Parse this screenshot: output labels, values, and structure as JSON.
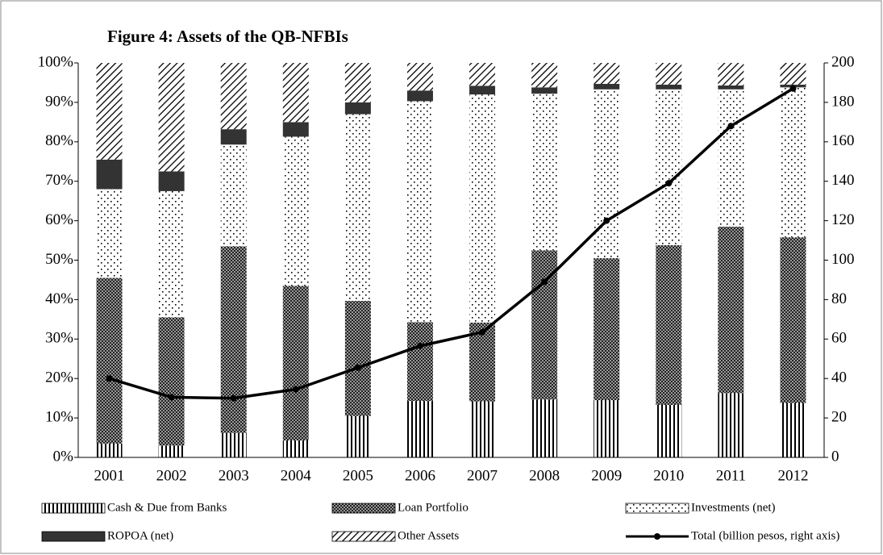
{
  "chart_data": {
    "type": "stacked-bar-line",
    "title": "Figure 4: Assets of the QB-NFBIs",
    "categories": [
      "2001",
      "2002",
      "2003",
      "2004",
      "2005",
      "2006",
      "2007",
      "2008",
      "2009",
      "2010",
      "2011",
      "2012"
    ],
    "series": [
      {
        "name": "Cash & Due from Banks",
        "pattern": "vertical-lines",
        "color": "#000000",
        "values": [
          3.5,
          3,
          6.2,
          4.3,
          10.5,
          14.3,
          14.2,
          14.7,
          14.5,
          13.3,
          16.3,
          13.8
        ]
      },
      {
        "name": "Loan Portfolio",
        "pattern": "crosshatch",
        "color": "#555555",
        "values": [
          42,
          32.5,
          47.3,
          39.2,
          29.2,
          20,
          20,
          37.8,
          36,
          40.5,
          42.2,
          42
        ]
      },
      {
        "name": "Investments (net)",
        "pattern": "dots",
        "color": "#000000",
        "values": [
          22.5,
          32,
          25.8,
          37.8,
          47.3,
          56,
          57.8,
          39.7,
          42.8,
          39.5,
          34.8,
          38
        ]
      },
      {
        "name": "ROPOA (net)",
        "pattern": "solid",
        "color": "#333333",
        "values": [
          7.5,
          5,
          3.9,
          3.7,
          3,
          2.7,
          2.2,
          1.6,
          1.4,
          1.2,
          1,
          0.7
        ]
      },
      {
        "name": "Other Assets",
        "pattern": "diagonal-lines",
        "color": "#000000",
        "values": [
          24.5,
          27.5,
          16.8,
          15,
          10,
          7,
          5.8,
          6.2,
          5.3,
          5.5,
          5.7,
          5.5
        ]
      },
      {
        "name": "Total (billion pesos, right axis)",
        "type": "line",
        "axis": "y2",
        "color": "#000000",
        "values": [
          40,
          30.5,
          30,
          34.5,
          45.5,
          56.5,
          63.5,
          89,
          120,
          139,
          168,
          187
        ]
      }
    ],
    "ylim": [
      0,
      100
    ],
    "yticks": [
      {
        "value": 0,
        "label": "0%"
      },
      {
        "value": 10,
        "label": "10%"
      },
      {
        "value": 20,
        "label": "20%"
      },
      {
        "value": 30,
        "label": "30%"
      },
      {
        "value": 40,
        "label": "40%"
      },
      {
        "value": 50,
        "label": "50%"
      },
      {
        "value": 60,
        "label": "60%"
      },
      {
        "value": 70,
        "label": "70%"
      },
      {
        "value": 80,
        "label": "80%"
      },
      {
        "value": 90,
        "label": "90%"
      },
      {
        "value": 100,
        "label": "100%"
      }
    ],
    "y2lim": [
      0,
      200
    ],
    "y2ticks": [
      0,
      20,
      40,
      60,
      80,
      100,
      120,
      140,
      160,
      180,
      200
    ],
    "legend": "bottom"
  }
}
